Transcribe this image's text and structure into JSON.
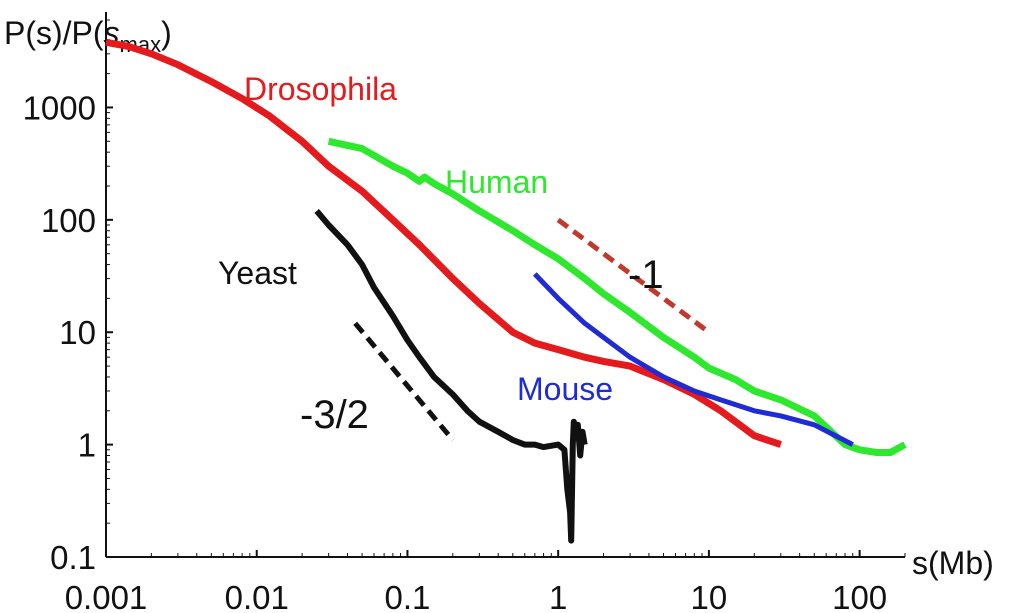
{
  "chart_data": {
    "type": "line",
    "title": "",
    "ylabel": "P(s)/P(s_max)",
    "ylabel_parts": {
      "pre": "P(s)/P(",
      "s": "s",
      "sub": "max",
      "post": ")"
    },
    "xlabel": "s(Mb)",
    "xscale": "log",
    "yscale": "log",
    "xlim": [
      0.001,
      200
    ],
    "ylim": [
      0.1,
      6000
    ],
    "grid": false,
    "x_ticks": [
      {
        "value": 0.001,
        "label": "0.001"
      },
      {
        "value": 0.01,
        "label": "0.01"
      },
      {
        "value": 0.1,
        "label": "0.1"
      },
      {
        "value": 1,
        "label": "1"
      },
      {
        "value": 10,
        "label": "10"
      },
      {
        "value": 100,
        "label": "100"
      }
    ],
    "y_ticks": [
      {
        "value": 0.1,
        "label": "0.1"
      },
      {
        "value": 1,
        "label": "1"
      },
      {
        "value": 10,
        "label": "10"
      },
      {
        "value": 100,
        "label": "100"
      },
      {
        "value": 1000,
        "label": "1000"
      }
    ],
    "series": [
      {
        "name": "Drosophila",
        "label": "Drosophila",
        "color": "#e41a1c",
        "x": [
          0.001,
          0.0014,
          0.002,
          0.003,
          0.005,
          0.008,
          0.012,
          0.02,
          0.03,
          0.05,
          0.08,
          0.12,
          0.2,
          0.3,
          0.5,
          0.7,
          1,
          1.5,
          2,
          3,
          5,
          8,
          12,
          20,
          30
        ],
        "y": [
          3800,
          3500,
          3000,
          2400,
          1700,
          1200,
          850,
          500,
          300,
          180,
          100,
          60,
          30,
          18,
          10,
          8,
          7,
          6,
          5.5,
          5,
          3.8,
          2.8,
          2.0,
          1.2,
          1.0
        ]
      },
      {
        "name": "Human",
        "label": "Human",
        "color": "#2ee82e",
        "x": [
          0.03,
          0.05,
          0.08,
          0.1,
          0.12,
          0.13,
          0.15,
          0.2,
          0.3,
          0.5,
          0.7,
          1,
          1.5,
          2,
          3,
          5,
          8,
          10,
          15,
          20,
          30,
          50,
          80,
          100,
          130,
          160,
          200
        ],
        "y": [
          500,
          430,
          300,
          260,
          220,
          240,
          210,
          170,
          120,
          80,
          60,
          45,
          30,
          22,
          15,
          9,
          6,
          4.8,
          3.8,
          3.0,
          2.5,
          1.8,
          1.0,
          0.9,
          0.85,
          0.85,
          1.0
        ]
      },
      {
        "name": "Mouse",
        "label": "Mouse",
        "color": "#1f2bd4",
        "x": [
          0.7,
          1,
          1.5,
          2,
          3,
          5,
          8,
          12,
          20,
          30,
          50,
          90
        ],
        "y": [
          33,
          20,
          12,
          9,
          6,
          4,
          3,
          2.5,
          2.0,
          1.8,
          1.5,
          1.0
        ]
      },
      {
        "name": "Yeast",
        "label": "Yeast",
        "color": "#111111",
        "x": [
          0.025,
          0.03,
          0.04,
          0.05,
          0.06,
          0.08,
          0.1,
          0.12,
          0.15,
          0.2,
          0.25,
          0.3,
          0.4,
          0.5,
          0.6,
          0.7,
          0.8,
          1.0,
          1.1,
          1.15,
          1.2,
          1.22,
          1.25,
          1.27,
          1.3,
          1.35,
          1.4,
          1.45,
          1.5
        ],
        "y": [
          120,
          90,
          60,
          40,
          25,
          14,
          8.5,
          6.0,
          4.0,
          2.8,
          2.0,
          1.6,
          1.3,
          1.1,
          1.0,
          1.0,
          0.95,
          1.0,
          0.9,
          0.4,
          0.25,
          0.14,
          1.0,
          1.6,
          1.2,
          1.5,
          0.8,
          1.3,
          1.0
        ]
      }
    ],
    "guide_lines": [
      {
        "name": "slope-minus-1",
        "label": "-1",
        "style": "dashed",
        "color": "#c0392b",
        "x": [
          1,
          10
        ],
        "y": [
          100,
          10
        ]
      },
      {
        "name": "slope-minus-3-2",
        "label": "-3/2",
        "style": "dashed",
        "color": "#111111",
        "x": [
          0.045,
          0.2
        ],
        "y": [
          12,
          1.1
        ]
      }
    ]
  }
}
